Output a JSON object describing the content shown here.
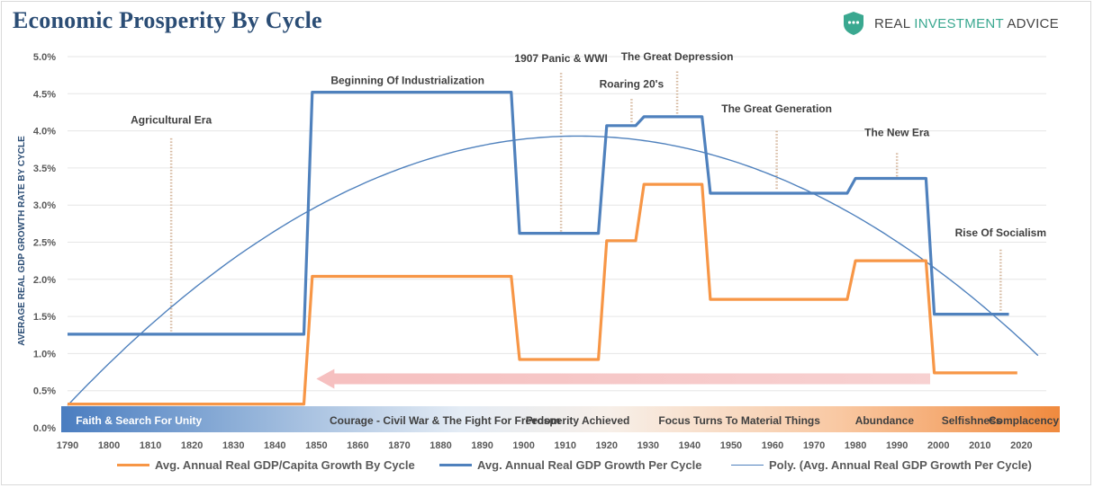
{
  "header": {
    "title": "Economic Prosperity By Cycle",
    "brand_prefix": "REAL ",
    "brand_accent": "INVESTMENT",
    "brand_suffix": " ADVICE"
  },
  "colors": {
    "gdp_growth": "#4f81bd",
    "gdp_per_capita": "#f79646",
    "poly": "#4f81bd",
    "title": "#2b4d75",
    "grid": "#e6e6e6",
    "brand_accent": "#3aa890"
  },
  "chart_data": {
    "type": "line",
    "title": "Economic Prosperity By Cycle",
    "xlabel": "",
    "ylabel": "AVERAGE REAL GDP GROWTH RATE BY CYCLE",
    "xlim": [
      1790,
      2026
    ],
    "ylim": [
      0.0,
      5.0
    ],
    "x_ticks": [
      1790,
      1800,
      1810,
      1820,
      1830,
      1840,
      1850,
      1860,
      1870,
      1880,
      1890,
      1900,
      1910,
      1920,
      1930,
      1940,
      1950,
      1960,
      1970,
      1980,
      1990,
      2000,
      2010,
      2020
    ],
    "y_ticks": [
      "0.0%",
      "0.5%",
      "1.0%",
      "1.5%",
      "2.0%",
      "2.5%",
      "3.0%",
      "3.5%",
      "4.0%",
      "4.5%",
      "5.0%"
    ],
    "grid": "horizontal",
    "legend_position": "bottom",
    "series": [
      {
        "name": "Avg. Annual Real GDP/Capita Growth By Cycle",
        "color": "#f79646",
        "points": [
          [
            1790,
            0.32
          ],
          [
            1847,
            0.32
          ],
          [
            1849,
            2.04
          ],
          [
            1897,
            2.04
          ],
          [
            1899,
            0.92
          ],
          [
            1918,
            0.92
          ],
          [
            1920,
            2.52
          ],
          [
            1927,
            2.52
          ],
          [
            1929,
            3.28
          ],
          [
            1943,
            3.28
          ],
          [
            1945,
            1.73
          ],
          [
            1978,
            1.73
          ],
          [
            1980,
            2.25
          ],
          [
            1997,
            2.25
          ],
          [
            1999,
            0.74
          ],
          [
            2019,
            0.74
          ]
        ]
      },
      {
        "name": "Avg. Annual Real GDP Growth Per Cycle",
        "color": "#4f81bd",
        "points": [
          [
            1790,
            1.26
          ],
          [
            1847,
            1.26
          ],
          [
            1849,
            4.52
          ],
          [
            1897,
            4.52
          ],
          [
            1899,
            2.62
          ],
          [
            1918,
            2.62
          ],
          [
            1920,
            4.07
          ],
          [
            1927,
            4.07
          ],
          [
            1929,
            4.19
          ],
          [
            1943,
            4.19
          ],
          [
            1945,
            3.16
          ],
          [
            1978,
            3.16
          ],
          [
            1980,
            3.36
          ],
          [
            1997,
            3.36
          ],
          [
            1999,
            1.53
          ],
          [
            2017,
            1.53
          ]
        ]
      },
      {
        "name": "Poly. (Avg. Annual Real GDP Growth Per Cycle)",
        "color": "#4f81bd",
        "trend_quadratic": {
          "peak_x": 1913,
          "peak_y": 3.93,
          "x_start": 1790,
          "y_start": 0.3,
          "x_end": 2024
        }
      }
    ],
    "annotations": [
      {
        "text": "Agricultural Era",
        "x": 1815,
        "y_label": 4.1,
        "y_top": 3.9,
        "y_bottom": 1.3
      },
      {
        "text": "Beginning Of Industrialization",
        "x": 1872,
        "y_label": 4.63,
        "y_top": null,
        "y_bottom": null
      },
      {
        "text": "1907 Panic & WWI",
        "x": 1909,
        "y_label": 4.93,
        "y_top": 4.78,
        "y_bottom": 2.64
      },
      {
        "text": "Roaring 20's",
        "x": 1926,
        "y_label": 4.58,
        "y_top": 4.43,
        "y_bottom": 4.1
      },
      {
        "text": "The Great Depression",
        "x": 1937,
        "y_label": 4.95,
        "y_top": 4.8,
        "y_bottom": 4.22
      },
      {
        "text": "The Great Generation",
        "x": 1961,
        "y_label": 4.25,
        "y_top": 4.0,
        "y_bottom": 3.2
      },
      {
        "text": "The New Era",
        "x": 1990,
        "y_label": 3.93,
        "y_top": 3.7,
        "y_bottom": 3.38
      },
      {
        "text": "Rise Of Socialism",
        "x": 2015,
        "y_label": 2.58,
        "y_top": 2.4,
        "y_bottom": 1.56
      }
    ],
    "arrow": {
      "x_from": 1998,
      "x_to": 1850,
      "y": 0.66,
      "color": "#f2aaaa"
    },
    "era_band": {
      "x_from": 1790,
      "x_to": 2026,
      "labels": [
        {
          "text": "Faith & Search For Unity",
          "x": 1792,
          "align": "start",
          "color": "#ffffff"
        },
        {
          "text": "Courage - Civil War & The Fight For Freedom",
          "x": 1881,
          "align": "middle",
          "color": "#404040"
        },
        {
          "text": "Prosperity Achieved",
          "x": 1913,
          "align": "middle",
          "color": "#404040"
        },
        {
          "text": "Focus Turns To Material Things",
          "x": 1952,
          "align": "middle",
          "color": "#404040"
        },
        {
          "text": "Abundance",
          "x": 1987,
          "align": "middle",
          "color": "#404040"
        },
        {
          "text": "Selfishness",
          "x": 2008,
          "align": "middle",
          "color": "#404040"
        },
        {
          "text": "Complacency",
          "x": 2024,
          "align": "end",
          "color": "#404040"
        }
      ]
    }
  },
  "legend": {
    "items": [
      {
        "label": "Avg. Annual Real GDP/Capita Growth By Cycle",
        "color": "#f79646",
        "weight": 3
      },
      {
        "label": "Avg. Annual Real GDP Growth Per Cycle",
        "color": "#4f81bd",
        "weight": 3
      },
      {
        "label": "Poly. (Avg. Annual Real GDP Growth Per Cycle)",
        "color": "#4f81bd",
        "weight": 1.2
      }
    ]
  }
}
